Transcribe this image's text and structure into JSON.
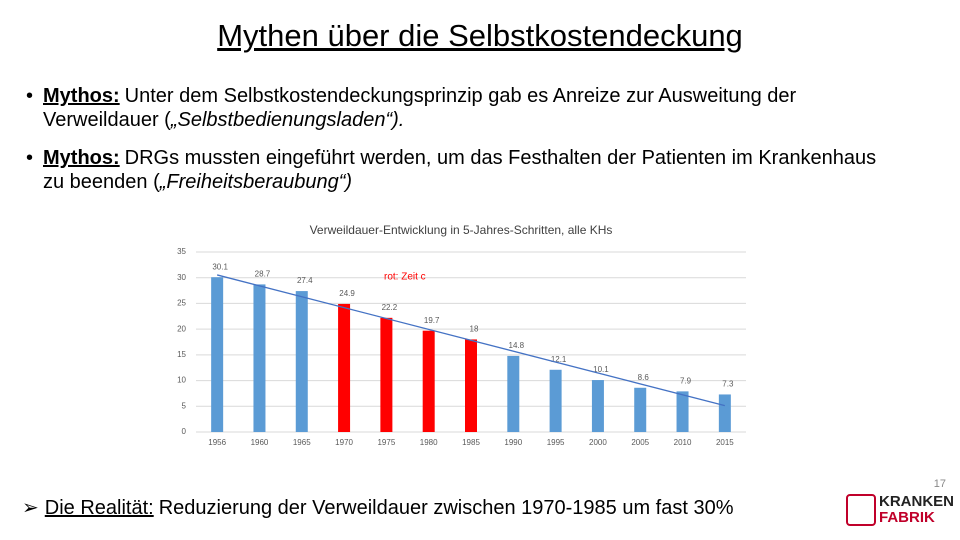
{
  "title": "Mythen über die Selbstkostendeckung",
  "bullets": [
    {
      "label": "Mythos:",
      "text": "Unter dem Selbstkostendeckungsprinzip gab es Anreize zur Ausweitung der Verweildauer (",
      "emphasis": "„Selbstbedienungsladen“)."
    },
    {
      "label": "Mythos:",
      "text": "DRGs mussten eingeführt werden, um das Festhalten der Patienten im Krankenhaus zu beenden (",
      "emphasis": "„Freiheitsberaubung“)"
    }
  ],
  "chart_data": {
    "type": "bar",
    "title": "Verweildauer-Entwicklung in 5-Jahres-Schritten, alle KHs",
    "categories": [
      "1956",
      "1960",
      "1965",
      "1970",
      "1975",
      "1980",
      "1985",
      "1990",
      "1995",
      "2000",
      "2005",
      "2010",
      "2015"
    ],
    "values": [
      30.1,
      28.7,
      27.4,
      24.9,
      22.2,
      19.7,
      18,
      14.8,
      12.1,
      10.1,
      8.6,
      7.9,
      7.3
    ],
    "colors": [
      "#5b9bd5",
      "#5b9bd5",
      "#5b9bd5",
      "#ff0000",
      "#ff0000",
      "#ff0000",
      "#ff0000",
      "#5b9bd5",
      "#5b9bd5",
      "#5b9bd5",
      "#5b9bd5",
      "#5b9bd5",
      "#5b9bd5"
    ],
    "ylim": [
      0,
      35
    ],
    "yticks": [
      0,
      5,
      10,
      15,
      20,
      25,
      30,
      35
    ],
    "grid": true,
    "trendline": "linear",
    "trendline_color": "#4472c4",
    "annotation": "rot: Zeit c"
  },
  "conclusion": {
    "label": "Die Realität:",
    "text": "Reduzierung der Verweildauer zwischen 1970-1985 um fast 30%"
  },
  "page_number": "17",
  "logo": {
    "line1": "KRANKEN",
    "line2": "FABRIK"
  }
}
